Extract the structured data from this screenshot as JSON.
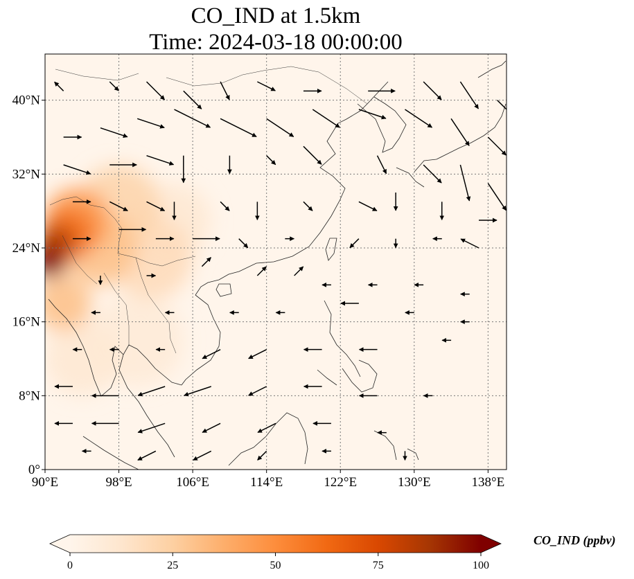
{
  "title": {
    "line1": "CO_IND at 1.5km",
    "line2": "Time: 2024-03-18 00:00:00"
  },
  "map": {
    "lon_range": [
      90,
      140
    ],
    "lat_range": [
      0,
      45
    ],
    "x_ticks": [
      {
        "value": 90,
        "label": "90°E"
      },
      {
        "value": 98,
        "label": "98°E"
      },
      {
        "value": 106,
        "label": "106°E"
      },
      {
        "value": 114,
        "label": "114°E"
      },
      {
        "value": 122,
        "label": "122°E"
      },
      {
        "value": 130,
        "label": "130°E"
      },
      {
        "value": 138,
        "label": "138°E"
      }
    ],
    "y_ticks": [
      {
        "value": 0,
        "label": "0°"
      },
      {
        "value": 8,
        "label": "8°N"
      },
      {
        "value": 16,
        "label": "16°N"
      },
      {
        "value": 24,
        "label": "24°N"
      },
      {
        "value": 32,
        "label": "32°N"
      },
      {
        "value": 40,
        "label": "40°N"
      }
    ],
    "gridlines": true,
    "field": "CO_IND",
    "concentration_blobs": [
      {
        "lon": 90.5,
        "lat": 22.5,
        "value": 100,
        "radius_deg": 1.8
      },
      {
        "lon": 91.2,
        "lat": 24.5,
        "value": 85,
        "radius_deg": 2.0
      },
      {
        "lon": 92.5,
        "lat": 25.5,
        "value": 60,
        "radius_deg": 2.8
      },
      {
        "lon": 93.5,
        "lat": 27.0,
        "value": 45,
        "radius_deg": 3.5
      },
      {
        "lon": 96.0,
        "lat": 24.0,
        "value": 30,
        "radius_deg": 4.0
      },
      {
        "lon": 98.0,
        "lat": 28.5,
        "value": 22,
        "radius_deg": 4.5
      },
      {
        "lon": 101.5,
        "lat": 23.0,
        "value": 18,
        "radius_deg": 4.5
      },
      {
        "lon": 92.0,
        "lat": 18.0,
        "value": 30,
        "radius_deg": 3.0
      },
      {
        "lon": 94.0,
        "lat": 12.0,
        "value": 10,
        "radius_deg": 4.0
      },
      {
        "lon": 104.0,
        "lat": 27.0,
        "value": 10,
        "radius_deg": 4.0
      },
      {
        "lon": 100.0,
        "lat": 14.0,
        "value": 8,
        "radius_deg": 5.0
      }
    ],
    "wind_vectors": [
      {
        "lon": 92,
        "lat": 41,
        "u": -1,
        "v": 1
      },
      {
        "lon": 97,
        "lat": 42,
        "u": 1,
        "v": -1
      },
      {
        "lon": 101,
        "lat": 42,
        "u": 2,
        "v": -2
      },
      {
        "lon": 105,
        "lat": 41,
        "u": 2,
        "v": -2
      },
      {
        "lon": 109,
        "lat": 42,
        "u": 1,
        "v": -2
      },
      {
        "lon": 113,
        "lat": 42,
        "u": 2,
        "v": -1
      },
      {
        "lon": 118,
        "lat": 41,
        "u": 2,
        "v": 0
      },
      {
        "lon": 125,
        "lat": 41,
        "u": 3,
        "v": 0
      },
      {
        "lon": 131,
        "lat": 42,
        "u": 2,
        "v": -2
      },
      {
        "lon": 135,
        "lat": 42,
        "u": 2,
        "v": -3
      },
      {
        "lon": 139,
        "lat": 40,
        "u": 2,
        "v": -2
      },
      {
        "lon": 92,
        "lat": 36,
        "u": 2,
        "v": 0
      },
      {
        "lon": 96,
        "lat": 37,
        "u": 3,
        "v": -1
      },
      {
        "lon": 100,
        "lat": 38,
        "u": 3,
        "v": -1
      },
      {
        "lon": 104,
        "lat": 39,
        "u": 4,
        "v": -2
      },
      {
        "lon": 109,
        "lat": 38,
        "u": 4,
        "v": -2
      },
      {
        "lon": 114,
        "lat": 38,
        "u": 3,
        "v": -2
      },
      {
        "lon": 119,
        "lat": 39,
        "u": 3,
        "v": -2
      },
      {
        "lon": 124,
        "lat": 39,
        "u": 3,
        "v": -1
      },
      {
        "lon": 129,
        "lat": 39,
        "u": 3,
        "v": -2
      },
      {
        "lon": 134,
        "lat": 38,
        "u": 2,
        "v": -3
      },
      {
        "lon": 138,
        "lat": 36,
        "u": 2,
        "v": -2
      },
      {
        "lon": 92,
        "lat": 33,
        "u": 3,
        "v": -1
      },
      {
        "lon": 97,
        "lat": 33,
        "u": 3,
        "v": 0
      },
      {
        "lon": 101,
        "lat": 34,
        "u": 3,
        "v": -1
      },
      {
        "lon": 105,
        "lat": 34,
        "u": 0,
        "v": -3
      },
      {
        "lon": 110,
        "lat": 34,
        "u": 0,
        "v": -2
      },
      {
        "lon": 114,
        "lat": 34,
        "u": 1,
        "v": -1
      },
      {
        "lon": 118,
        "lat": 35,
        "u": 2,
        "v": -2
      },
      {
        "lon": 126,
        "lat": 34,
        "u": 1,
        "v": -2
      },
      {
        "lon": 131,
        "lat": 33,
        "u": 2,
        "v": -2
      },
      {
        "lon": 135,
        "lat": 33,
        "u": 1,
        "v": -4
      },
      {
        "lon": 138,
        "lat": 31,
        "u": 2,
        "v": -3
      },
      {
        "lon": 93,
        "lat": 29,
        "u": 2,
        "v": 0
      },
      {
        "lon": 97,
        "lat": 29,
        "u": 2,
        "v": -1
      },
      {
        "lon": 101,
        "lat": 29,
        "u": 2,
        "v": -1
      },
      {
        "lon": 104,
        "lat": 29,
        "u": 0,
        "v": -2
      },
      {
        "lon": 109,
        "lat": 29,
        "u": 1,
        "v": -1
      },
      {
        "lon": 113,
        "lat": 29,
        "u": 0,
        "v": -2
      },
      {
        "lon": 118,
        "lat": 29,
        "u": 1,
        "v": -1
      },
      {
        "lon": 124,
        "lat": 29,
        "u": 2,
        "v": -1
      },
      {
        "lon": 128,
        "lat": 30,
        "u": 0,
        "v": -2
      },
      {
        "lon": 133,
        "lat": 29,
        "u": 0,
        "v": -2
      },
      {
        "lon": 137,
        "lat": 27,
        "u": 2,
        "v": 0
      },
      {
        "lon": 93,
        "lat": 25,
        "u": 2,
        "v": 0
      },
      {
        "lon": 98,
        "lat": 26,
        "u": 3,
        "v": 0
      },
      {
        "lon": 102,
        "lat": 25,
        "u": 2,
        "v": 0
      },
      {
        "lon": 106,
        "lat": 25,
        "u": 3,
        "v": 0
      },
      {
        "lon": 111,
        "lat": 25,
        "u": 1,
        "v": -1
      },
      {
        "lon": 116,
        "lat": 25,
        "u": 1,
        "v": 0
      },
      {
        "lon": 124,
        "lat": 25,
        "u": -1,
        "v": -1
      },
      {
        "lon": 128,
        "lat": 25,
        "u": 0,
        "v": -1
      },
      {
        "lon": 133,
        "lat": 25,
        "u": -1,
        "v": 0
      },
      {
        "lon": 137,
        "lat": 24,
        "u": -2,
        "v": 1
      },
      {
        "lon": 96,
        "lat": 21,
        "u": 0,
        "v": -1
      },
      {
        "lon": 101,
        "lat": 21,
        "u": 1,
        "v": 0
      },
      {
        "lon": 107,
        "lat": 22,
        "u": 1,
        "v": 1
      },
      {
        "lon": 113,
        "lat": 21,
        "u": 1,
        "v": 1
      },
      {
        "lon": 117,
        "lat": 21,
        "u": 1,
        "v": 1
      },
      {
        "lon": 121,
        "lat": 20,
        "u": -1,
        "v": 0
      },
      {
        "lon": 126,
        "lat": 20,
        "u": -1,
        "v": 0
      },
      {
        "lon": 131,
        "lat": 20,
        "u": -1,
        "v": 0
      },
      {
        "lon": 136,
        "lat": 19,
        "u": -1,
        "v": 0
      },
      {
        "lon": 96,
        "lat": 17,
        "u": -1,
        "v": 0
      },
      {
        "lon": 104,
        "lat": 17,
        "u": -1,
        "v": 0
      },
      {
        "lon": 111,
        "lat": 17,
        "u": -1,
        "v": 0
      },
      {
        "lon": 116,
        "lat": 17,
        "u": -1,
        "v": 0
      },
      {
        "lon": 124,
        "lat": 18,
        "u": -2,
        "v": 0
      },
      {
        "lon": 130,
        "lat": 17,
        "u": -1,
        "v": 0
      },
      {
        "lon": 136,
        "lat": 16,
        "u": -1,
        "v": 0
      },
      {
        "lon": 94,
        "lat": 13,
        "u": -1,
        "v": 0
      },
      {
        "lon": 98,
        "lat": 13,
        "u": -1,
        "v": 0
      },
      {
        "lon": 103,
        "lat": 13,
        "u": -1,
        "v": 0
      },
      {
        "lon": 109,
        "lat": 13,
        "u": -2,
        "v": -1
      },
      {
        "lon": 114,
        "lat": 13,
        "u": -2,
        "v": -1
      },
      {
        "lon": 120,
        "lat": 13,
        "u": -2,
        "v": 0
      },
      {
        "lon": 126,
        "lat": 13,
        "u": -2,
        "v": 0
      },
      {
        "lon": 134,
        "lat": 14,
        "u": -1,
        "v": 0
      },
      {
        "lon": 93,
        "lat": 9,
        "u": -2,
        "v": 0
      },
      {
        "lon": 98,
        "lat": 8,
        "u": -3,
        "v": 0
      },
      {
        "lon": 103,
        "lat": 9,
        "u": -3,
        "v": -1
      },
      {
        "lon": 108,
        "lat": 9,
        "u": -3,
        "v": -1
      },
      {
        "lon": 114,
        "lat": 9,
        "u": -2,
        "v": -1
      },
      {
        "lon": 120,
        "lat": 9,
        "u": -2,
        "v": 0
      },
      {
        "lon": 126,
        "lat": 8,
        "u": -2,
        "v": 0
      },
      {
        "lon": 132,
        "lat": 8,
        "u": -1,
        "v": 0
      },
      {
        "lon": 93,
        "lat": 5,
        "u": -2,
        "v": 0
      },
      {
        "lon": 98,
        "lat": 5,
        "u": -3,
        "v": 0
      },
      {
        "lon": 103,
        "lat": 5,
        "u": -3,
        "v": -1
      },
      {
        "lon": 109,
        "lat": 5,
        "u": -2,
        "v": -1
      },
      {
        "lon": 115,
        "lat": 5,
        "u": -2,
        "v": -1
      },
      {
        "lon": 121,
        "lat": 5,
        "u": -2,
        "v": 0
      },
      {
        "lon": 127,
        "lat": 4,
        "u": -1,
        "v": 0
      },
      {
        "lon": 95,
        "lat": 2,
        "u": -1,
        "v": 0
      },
      {
        "lon": 102,
        "lat": 2,
        "u": -2,
        "v": -1
      },
      {
        "lon": 108,
        "lat": 2,
        "u": -2,
        "v": -1
      },
      {
        "lon": 114,
        "lat": 2,
        "u": -1,
        "v": -1
      },
      {
        "lon": 121,
        "lat": 2,
        "u": -1,
        "v": 0
      },
      {
        "lon": 129,
        "lat": 2,
        "u": 0,
        "v": -1
      }
    ]
  },
  "colorbar": {
    "label": "CO_IND (ppbv)",
    "range": [
      0,
      100
    ],
    "ticks": [
      {
        "value": 0,
        "label": "0"
      },
      {
        "value": 25,
        "label": "25"
      },
      {
        "value": 50,
        "label": "50"
      },
      {
        "value": 75,
        "label": "75"
      },
      {
        "value": 100,
        "label": "100"
      }
    ],
    "colormap": [
      "#fff5eb",
      "#fee6ce",
      "#fdd0a2",
      "#fdae6b",
      "#fd8d3c",
      "#f16913",
      "#d94801",
      "#a63603",
      "#7f0000"
    ],
    "extend": "both"
  }
}
